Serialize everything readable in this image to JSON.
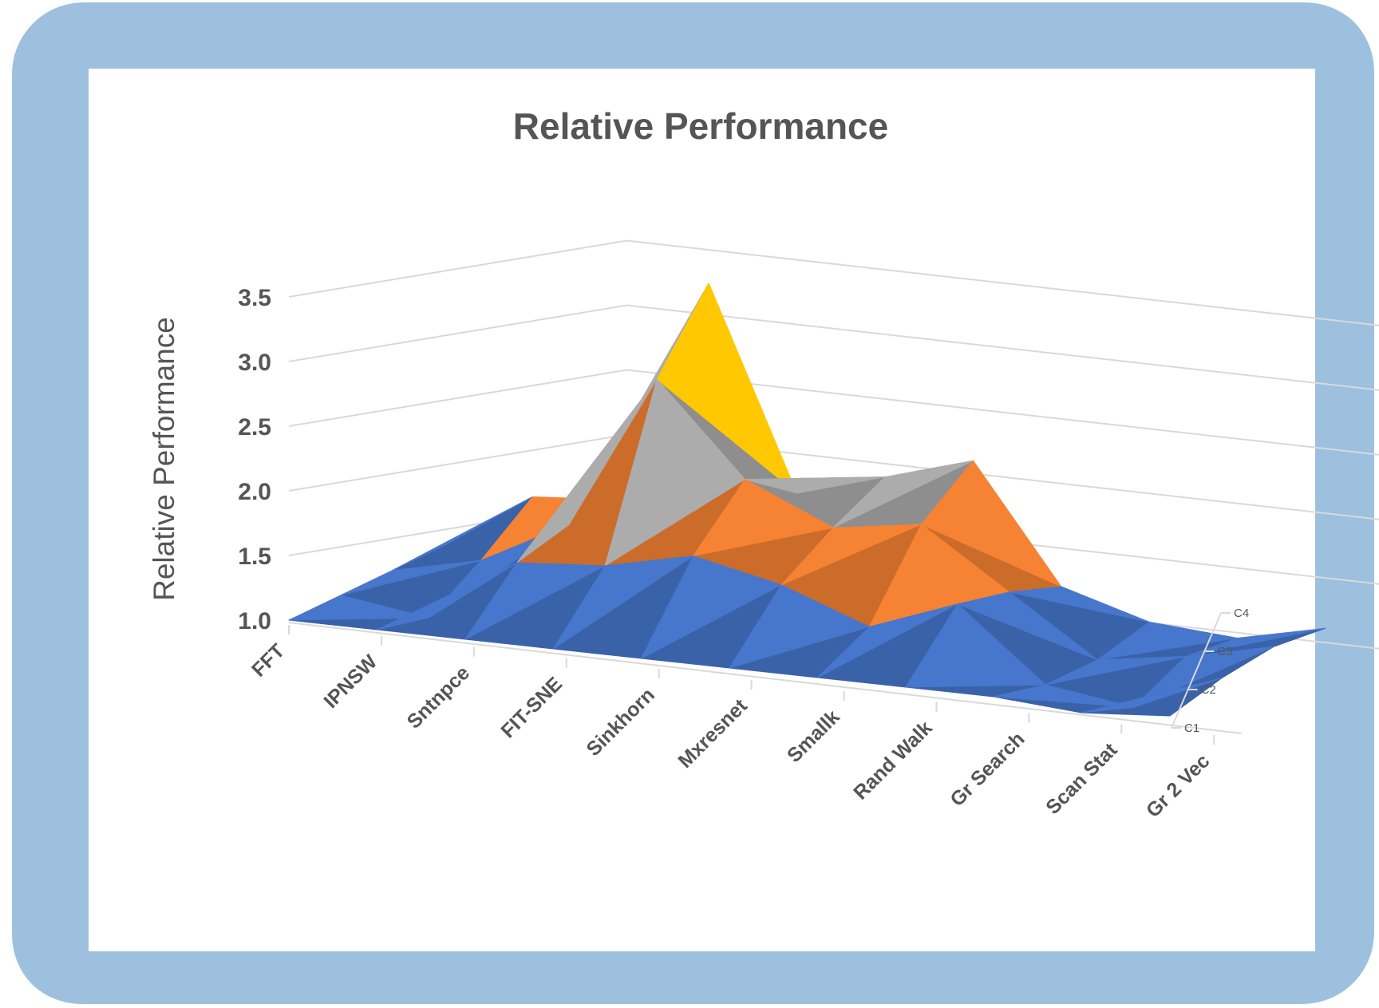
{
  "chart_data": {
    "type": "surface",
    "title": "Relative Performance",
    "ylabel": "Relative Performance",
    "xlabel": "",
    "zlim": [
      1.0,
      3.5
    ],
    "z_ticks": [
      "1.0",
      "1.5",
      "2.0",
      "2.5",
      "3.0",
      "3.5"
    ],
    "categories": [
      "FFT",
      "IPNSW",
      "Sntnpce",
      "FIT-SNE",
      "Sinkhorn",
      "Mxresnet",
      "Smallk",
      "Rand Walk",
      "Gr Search",
      "Scan Stat",
      "Gr 2 Vec"
    ],
    "series_labels": [
      "C1",
      "C2",
      "C3",
      "C4"
    ],
    "series": [
      {
        "name": "C1",
        "values": [
          1.0,
          1.0,
          1.0,
          1.0,
          1.0,
          1.0,
          1.0,
          1.0,
          1.0,
          0.95,
          1.0
        ]
      },
      {
        "name": "C2",
        "values": [
          1.1,
          1.0,
          1.5,
          1.55,
          1.7,
          1.55,
          1.3,
          1.55,
          1.0,
          0.9,
          1.2
        ]
      },
      {
        "name": "C3",
        "values": [
          1.2,
          1.35,
          1.7,
          2.9,
          2.2,
          1.9,
          2.0,
          1.55,
          1.1,
          1.2,
          1.35
        ]
      },
      {
        "name": "C4",
        "values": [
          1.3,
          1.75,
          1.8,
          3.55,
          2.0,
          2.2,
          2.4,
          1.5,
          1.3,
          1.25,
          1.4
        ]
      }
    ],
    "color_bands": [
      {
        "range": [
          1.0,
          1.5
        ],
        "color": "#4472c4"
      },
      {
        "range": [
          1.5,
          2.0
        ],
        "color": "#ed7d31"
      },
      {
        "range": [
          2.0,
          2.5
        ],
        "color": "#a5a5a5"
      },
      {
        "range": [
          2.5,
          3.0
        ],
        "color": "#ffc000"
      },
      {
        "range": [
          3.0,
          3.5
        ],
        "color": "#5b9bd5"
      }
    ],
    "grid": true,
    "legend": "none"
  }
}
